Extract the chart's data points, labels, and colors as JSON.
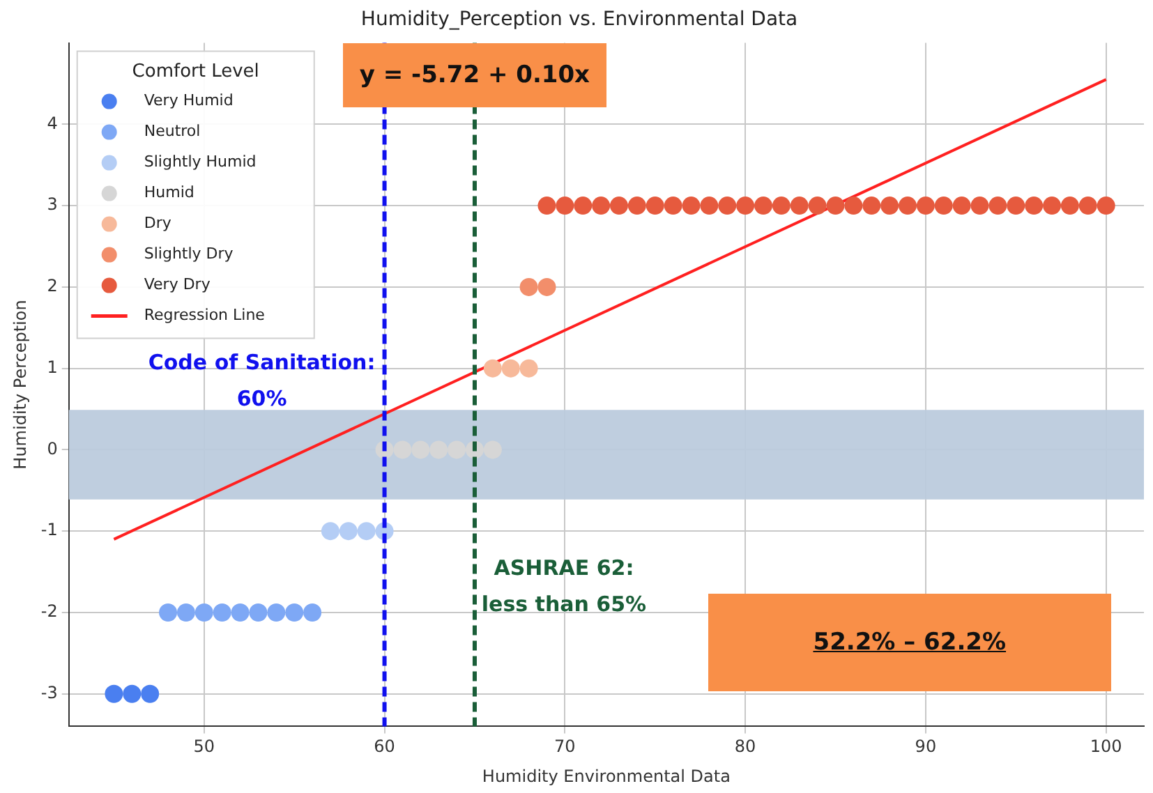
{
  "chart_data": {
    "type": "scatter",
    "title": "Humidity_Perception vs. Environmental Data",
    "xlabel": "Humidity Environmental Data",
    "ylabel": "Humidity Perception",
    "legend_title": "Comfort Level",
    "series": [
      {
        "name": "Very Humid",
        "color": "#4a7ff0",
        "x": [
          45,
          46,
          47
        ],
        "values": [
          -3,
          -3,
          -3
        ]
      },
      {
        "name": "Neutrol",
        "color": "#7ea8f5",
        "x": [
          48,
          49,
          50,
          51,
          52,
          53,
          54,
          55,
          56
        ],
        "values": [
          -2,
          -2,
          -2,
          -2,
          -2,
          -2,
          -2,
          -2,
          -2
        ]
      },
      {
        "name": "Slightly Humid",
        "color": "#b4cdf5",
        "x": [
          57,
          58,
          59,
          60
        ],
        "values": [
          -1,
          -1,
          -1,
          -1
        ]
      },
      {
        "name": "Humid",
        "color": "#d6d6d6",
        "x": [
          60,
          61,
          62,
          63,
          64,
          65,
          66
        ],
        "values": [
          0,
          0,
          0,
          0,
          0,
          0,
          0
        ]
      },
      {
        "name": "Dry",
        "color": "#f7b99a",
        "x": [
          66,
          67,
          68
        ],
        "values": [
          1,
          1,
          1
        ]
      },
      {
        "name": "Slightly Dry",
        "color": "#f28e6b",
        "x": [
          68,
          69
        ],
        "values": [
          2,
          2
        ]
      },
      {
        "name": "Very Dry",
        "color": "#e65a3e",
        "x": [
          69,
          70,
          71,
          72,
          73,
          74,
          75,
          76,
          77,
          78,
          79,
          80,
          81,
          82,
          83,
          84,
          85,
          86,
          87,
          88,
          89,
          90,
          91,
          92,
          93,
          94,
          95,
          96,
          97,
          98,
          99,
          100
        ],
        "values": [
          3,
          3,
          3,
          3,
          3,
          3,
          3,
          3,
          3,
          3,
          3,
          3,
          3,
          3,
          3,
          3,
          3,
          3,
          3,
          3,
          3,
          3,
          3,
          3,
          3,
          3,
          3,
          3,
          3,
          3,
          3,
          3
        ]
      },
      {
        "name": "Regression Line",
        "type": "line",
        "color": "#ff2020",
        "marker": "none",
        "x": [
          45,
          100
        ],
        "values": [
          -1.1,
          4.55
        ]
      }
    ],
    "xlim": [
      42.5,
      102.1
    ],
    "ylim": [
      -3.4,
      5.0
    ],
    "xticks": [
      50,
      60,
      70,
      80,
      90,
      100
    ],
    "yticks": [
      -3,
      -2,
      -1,
      0,
      1,
      2,
      3,
      4
    ],
    "grid": true,
    "legend": "top left",
    "marker": "circle",
    "ref_lines": [
      {
        "axis": "x",
        "value": 60,
        "label": "Code of Sanitation:\n60%",
        "color": "#1010ee",
        "line_style": "dashed"
      },
      {
        "axis": "x",
        "value": 65,
        "label": "ASHRAE 62:\nless than 65%",
        "color": "#1a5e38",
        "line_style": "dashed"
      }
    ],
    "bands": [
      {
        "axis": "y",
        "from": -0.61,
        "to": 0.49,
        "color": "#bccbdd"
      }
    ],
    "annotations": [
      "y = -5.72 + 0.10x",
      "52.2% – 62.2%"
    ]
  }
}
